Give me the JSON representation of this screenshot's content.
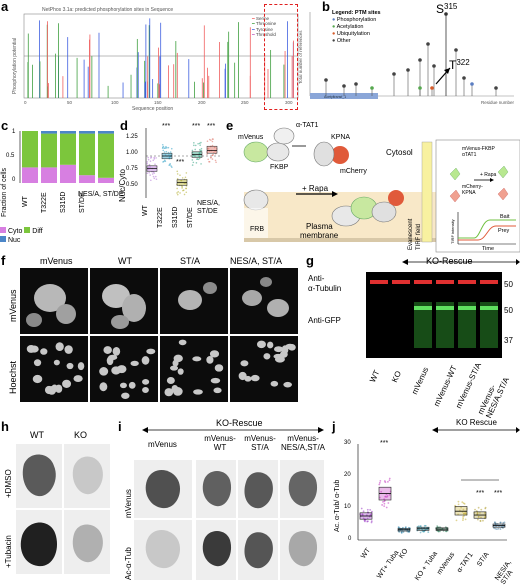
{
  "panels": {
    "a": "a",
    "b": "b",
    "c": "c",
    "d": "d",
    "e": "e",
    "f": "f",
    "g": "g",
    "h": "h",
    "i": "i",
    "j": "j"
  },
  "panel_a": {
    "title": "NetPhos 3.1a: predicted phosphorylation sites in Sequence",
    "ylabel": "Phosphorylation potential",
    "xlabel": "Sequence position",
    "legend": [
      "Serine",
      "Threonine",
      "Tyrosine",
      "Threshold"
    ],
    "xticks": [
      "0",
      "50",
      "100",
      "150",
      "200",
      "250",
      "300"
    ],
    "yticks": [
      "0",
      "0.5",
      "1"
    ]
  },
  "panel_b": {
    "legend_title": "Legend: PTM sites",
    "legend": [
      "Phosphorylation",
      "Acetylation",
      "Ubiquitylation",
      "Other"
    ],
    "ylabel": "Total number of references",
    "xlabel": "Residue number",
    "domain_label": "Acetyltransf_1",
    "site1": "S",
    "site1_num": "315",
    "site2": "T",
    "site2_num": "322"
  },
  "panel_c": {
    "ylabel": "Fraction of cells",
    "yticks": [
      "0",
      "0.5",
      "1"
    ],
    "categories": [
      "WT",
      "T322E",
      "S315D",
      "ST/DE",
      "NES/A, ST/DE"
    ],
    "legend": [
      "Cyto",
      "Diff",
      "Nuc"
    ]
  },
  "panel_d": {
    "ylabel": "Nuc/Cyto",
    "yticks": [
      "0.50",
      "0.75",
      "1.00",
      "1.25"
    ],
    "categories": [
      "WT",
      "T322E",
      "S315D",
      "ST/DE",
      "NES/A, ST/DE"
    ],
    "stars": [
      "***",
      "***",
      "***",
      "***"
    ]
  },
  "panel_e": {
    "labels": {
      "atat1": "α-TAT1",
      "kpna": "KPNA",
      "mvenus": "mVenus",
      "mcherry": "mCherry",
      "fkbp": "FKBP",
      "frb": "FRB",
      "cytosol": "Cytosol",
      "rapa": "+ Rapa",
      "pm1": "Plasma",
      "pm2": "membrane",
      "evan": "Evanescent",
      "tirf": "TIRF field",
      "inset1": "mVenus-FKBP",
      "inset2": "αTAT1",
      "inset3": "mCherry-",
      "inset4": "KPNA",
      "inset_rapa": "+ Rapa",
      "bait": "Bait",
      "prey": "Prey",
      "time": "Time",
      "tirf_int": "TIRF intensity"
    }
  },
  "panel_f": {
    "cols": [
      "mVenus",
      "WT",
      "ST/A",
      "NES/A, ST/A"
    ],
    "rows": [
      "mVenus",
      "Hoechst"
    ]
  },
  "panel_g": {
    "header": "KO-Rescue",
    "rows": [
      "Anti-",
      "α-Tubulin",
      "Anti-GFP"
    ],
    "mw": [
      "50",
      "50",
      "37"
    ],
    "lanes": [
      "WT",
      "KO",
      "mVenus",
      "mVenus-WT",
      "mVenus-ST/A",
      "mVenus-NES/A,ST/A"
    ]
  },
  "panel_h": {
    "cols": [
      "WT",
      "KO"
    ],
    "rows": [
      "+DMSO",
      "+Tubacin"
    ]
  },
  "panel_i": {
    "header": "KO-Rescue",
    "cols": [
      "mVenus",
      "mVenus-WT",
      "mVenus-ST/A",
      "mVenus-NES/A,ST/A"
    ],
    "rows": [
      "mVenus",
      "Ac-α-Tub"
    ]
  },
  "panel_j": {
    "header": "KO Rescue",
    "ylabel": "Ac. α-Tub/ α-Tub",
    "yticks": [
      "0",
      "10",
      "20",
      "30"
    ],
    "categories": [
      "WT",
      "WT+ Tuba",
      "KO",
      "KO + Tuba",
      "mVenus",
      "α-TAT1",
      "ST/A",
      "NES/A, ST/A"
    ],
    "stars": [
      "***",
      "***",
      "***"
    ]
  },
  "chart_data": [
    {
      "type": "bar",
      "title": "",
      "categories": [
        "WT",
        "T322E",
        "S315D",
        "ST/DE",
        "NES/A, ST/DE"
      ],
      "series": [
        {
          "name": "Cyto",
          "values": [
            0.3,
            0.3,
            0.35,
            0.15,
            0.1
          ]
        },
        {
          "name": "Diff",
          "values": [
            0.7,
            0.65,
            0.6,
            0.8,
            0.85
          ]
        },
        {
          "name": "Nuc",
          "values": [
            0.0,
            0.05,
            0.05,
            0.05,
            0.05
          ]
        }
      ],
      "ylim": [
        0,
        1
      ],
      "ylabel": "Fraction of cells",
      "colors": {
        "Cyto": "#d77fe1",
        "Diff": "#7cc63c",
        "Nuc": "#4c86c8"
      }
    },
    {
      "type": "scatter",
      "title": "",
      "categories": [
        "WT",
        "T322E",
        "S315D",
        "ST/DE",
        "NES/A, ST/DE"
      ],
      "medians": [
        0.82,
        1.0,
        0.62,
        1.02,
        1.08
      ],
      "q1": [
        0.78,
        0.96,
        0.58,
        0.98,
        1.04
      ],
      "q3": [
        0.86,
        1.04,
        0.66,
        1.06,
        1.14
      ],
      "ylim": [
        0.4,
        1.4
      ],
      "ylabel": "Nuc/Cyto",
      "colors": [
        "#b77fd8",
        "#3ea7c9",
        "#b8b23a",
        "#3fa88b",
        "#e07a6e"
      ]
    },
    {
      "type": "scatter",
      "title": "",
      "categories": [
        "WT",
        "WT+ Tuba",
        "KO",
        "KO + Tuba",
        "mVenus",
        "α-TAT1",
        "ST/A",
        "NES/A, ST/A"
      ],
      "medians": [
        7.5,
        14.5,
        3.2,
        3.5,
        3.4,
        9.0,
        7.8,
        4.5
      ],
      "q1": [
        6.5,
        12.5,
        2.8,
        3.0,
        3.0,
        7.8,
        6.8,
        4.0
      ],
      "q3": [
        8.5,
        16.5,
        3.6,
        4.0,
        3.8,
        10.5,
        8.8,
        5.0
      ],
      "ylim": [
        0,
        30
      ],
      "ylabel": "Ac. α-Tub/ α-Tub",
      "colors": [
        "#9b3ac4",
        "#c23bbf",
        "#2a7fa6",
        "#3a9ab0",
        "#3f8a6a",
        "#c9b23a",
        "#b4a239",
        "#4f7fa0"
      ]
    }
  ]
}
